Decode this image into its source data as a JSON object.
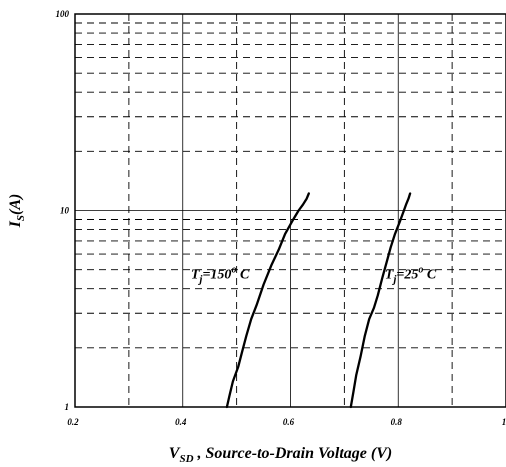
{
  "chart_data": {
    "type": "line",
    "xscale": "linear",
    "yscale": "log",
    "xlim": [
      0.2,
      1.0
    ],
    "ylim": [
      1,
      100
    ],
    "grid": true,
    "x_ticks": [
      {
        "value": 0.2,
        "label": "0.2"
      },
      {
        "value": 0.4,
        "label": "0.4"
      },
      {
        "value": 0.6,
        "label": "0.6"
      },
      {
        "value": 0.8,
        "label": "0.8"
      },
      {
        "value": 1.0,
        "label": "1"
      }
    ],
    "y_ticks": [
      {
        "value": 1,
        "label": "1"
      },
      {
        "value": 10,
        "label": "10"
      },
      {
        "value": 100,
        "label": "100"
      }
    ],
    "xlabel": {
      "main": "V",
      "sub": "SD",
      "rest": " , Source-to-Drain Voltage (V)"
    },
    "ylabel": {
      "main": "I",
      "sub": "S",
      "rest": "(A)"
    },
    "series": [
      {
        "points": [
          [
            0.482,
            1.0
          ],
          [
            0.487,
            1.15
          ],
          [
            0.493,
            1.35
          ],
          [
            0.503,
            1.6
          ],
          [
            0.51,
            1.9
          ],
          [
            0.518,
            2.3
          ],
          [
            0.527,
            2.8
          ],
          [
            0.537,
            3.3
          ],
          [
            0.55,
            4.2
          ],
          [
            0.565,
            5.3
          ],
          [
            0.578,
            6.3
          ],
          [
            0.59,
            7.6
          ],
          [
            0.603,
            8.8
          ],
          [
            0.615,
            10.0
          ],
          [
            0.623,
            10.7
          ],
          [
            0.63,
            11.5
          ],
          [
            0.634,
            12.2
          ]
        ],
        "annotation": {
          "x": 0.415,
          "y": 4.5,
          "main": "T",
          "sub": "j",
          "rest": "=150",
          "sup": "o",
          "tail": " C"
        }
      },
      {
        "points": [
          [
            0.712,
            1.0
          ],
          [
            0.717,
            1.2
          ],
          [
            0.722,
            1.45
          ],
          [
            0.73,
            1.8
          ],
          [
            0.738,
            2.3
          ],
          [
            0.746,
            2.8
          ],
          [
            0.755,
            3.2
          ],
          [
            0.762,
            3.7
          ],
          [
            0.77,
            4.5
          ],
          [
            0.778,
            5.4
          ],
          [
            0.786,
            6.5
          ],
          [
            0.794,
            7.6
          ],
          [
            0.803,
            8.8
          ],
          [
            0.81,
            9.9
          ],
          [
            0.815,
            10.8
          ],
          [
            0.819,
            11.5
          ],
          [
            0.822,
            12.2
          ]
        ],
        "annotation": {
          "x": 0.775,
          "y": 4.5,
          "main": "T",
          "sub": "j",
          "rest": "=25",
          "sup": "o",
          "tail": " C"
        }
      }
    ]
  }
}
